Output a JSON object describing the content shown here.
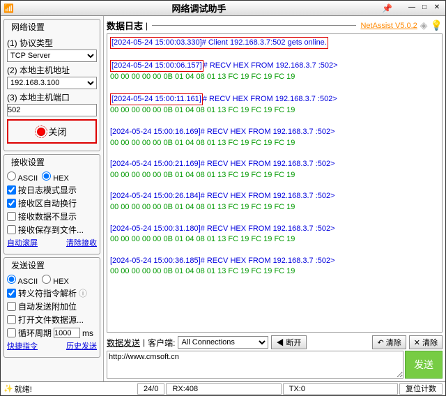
{
  "title": "网络调试助手",
  "version": {
    "label": "NetAssist V5.0.2"
  },
  "panels": {
    "net": {
      "title": "网络设置",
      "proto_label": "(1) 协议类型",
      "proto_value": "TCP Server",
      "host_label": "(2) 本地主机地址",
      "host_value": "192.168.3.100",
      "port_label": "(3) 本地主机端口",
      "port_value": "502",
      "close_btn": "关闭"
    },
    "recv": {
      "title": "接收设置",
      "opt_ascii": "ASCII",
      "opt_hex": "HEX",
      "c1": "按日志模式显示",
      "c2": "接收区自动换行",
      "c3": "接收数据不显示",
      "c4": "接收保存到文件...",
      "link1": "自动滚屏",
      "link2": "清除接收"
    },
    "send": {
      "title": "发送设置",
      "opt_ascii": "ASCII",
      "opt_hex": "HEX",
      "c1": "转义符指令解析",
      "c2": "自动发送附加位",
      "c3": "打开文件数据源...",
      "c4": "循环周期",
      "c4_val": "1000",
      "c4_unit": "ms",
      "link1": "快捷指令",
      "link2": "历史发送"
    }
  },
  "log": {
    "title": "数据日志",
    "entries": [
      {
        "ts": "[2024-05-24 15:00:03.330]",
        "msg": "# Client 192.168.3.7:502 gets online.",
        "box": "full",
        "hex": ""
      },
      {
        "ts": "[2024-05-24 15:00:06.157]",
        "msg": "# RECV HEX FROM 192.168.3.7 :502>",
        "box": "ts",
        "hex": "00 00 00 00 00 0B 01 04 08 01 13 FC 19 FC 19 FC 19"
      },
      {
        "ts": "[2024-05-24 15:00:11.161]",
        "msg": "# RECV HEX FROM 192.168.3.7 :502>",
        "box": "ts",
        "hex": "00 00 00 00 00 0B 01 04 08 01 13 FC 19 FC 19 FC 19"
      },
      {
        "ts": "[2024-05-24 15:00:16.169]",
        "msg": "# RECV HEX FROM 192.168.3.7 :502>",
        "box": "",
        "hex": "00 00 00 00 00 0B 01 04 08 01 13 FC 19 FC 19 FC 19"
      },
      {
        "ts": "[2024-05-24 15:00:21.169]",
        "msg": "# RECV HEX FROM 192.168.3.7 :502>",
        "box": "",
        "hex": "00 00 00 00 00 0B 01 04 08 01 13 FC 19 FC 19 FC 19"
      },
      {
        "ts": "[2024-05-24 15:00:26.184]",
        "msg": "# RECV HEX FROM 192.168.3.7 :502>",
        "box": "",
        "hex": "00 00 00 00 00 0B 01 04 08 01 13 FC 19 FC 19 FC 19"
      },
      {
        "ts": "[2024-05-24 15:00:31.180]",
        "msg": "# RECV HEX FROM 192.168.3.7 :502>",
        "box": "",
        "hex": "00 00 00 00 00 0B 01 04 08 01 13 FC 19 FC 19 FC 19"
      },
      {
        "ts": "[2024-05-24 15:00:36.185]",
        "msg": "# RECV HEX FROM 192.168.3.7 :502>",
        "box": "",
        "hex": "00 00 00 00 00 0B 01 04 08 01 13 FC 19 FC 19 FC 19"
      }
    ]
  },
  "sendsec": {
    "tab1": "数据发送",
    "tab2": "客户端:",
    "conn_sel": "All Connections",
    "disconnect": "◀ 断开",
    "clear1": "↶ 清除",
    "clear2": "✕ 清除",
    "input": "http://www.cmsoft.cn",
    "send": "发送"
  },
  "status": {
    "ready": "就绪!",
    "counter": "24/0",
    "rx": "RX:408",
    "tx": "TX:0",
    "reset": "复位计数"
  }
}
